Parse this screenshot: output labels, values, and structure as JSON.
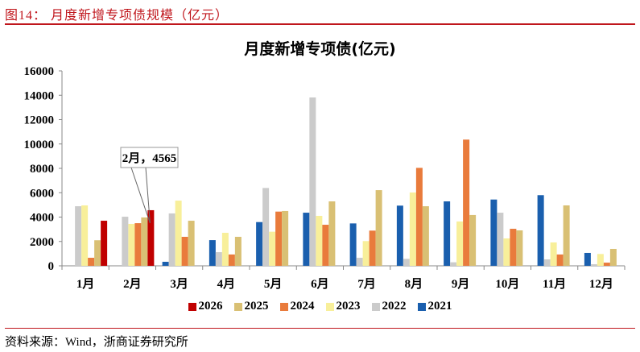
{
  "figure": {
    "title": "图14：  月度新增专项债规模（亿元）",
    "source": "资料来源：Wind，浙商证券研究所"
  },
  "colors": {
    "2021": "#1a5fae",
    "2022": "#cbcbcb",
    "2023": "#f8ef9a",
    "2024": "#e97b3c",
    "2025": "#d9c074",
    "2026": "#c00000",
    "accent": "#c0161c"
  },
  "annotation": {
    "label": "2月，4565",
    "month_index": 1,
    "series": "2026",
    "value": 4565
  },
  "legend": [
    {
      "label": "2026",
      "key": "2026"
    },
    {
      "label": "2025",
      "key": "2025"
    },
    {
      "label": "2024",
      "key": "2024"
    },
    {
      "label": "2023",
      "key": "2023"
    },
    {
      "label": "2022",
      "key": "2022"
    },
    {
      "label": "2021",
      "key": "2021"
    }
  ],
  "chart_data": {
    "type": "bar",
    "title": "月度新增专项债(亿元)",
    "xlabel": "",
    "ylabel": "",
    "ylim": [
      0,
      16000
    ],
    "yticks": [
      0,
      2000,
      4000,
      6000,
      8000,
      10000,
      12000,
      14000,
      16000
    ],
    "grid": false,
    "legend_position": "bottom",
    "categories": [
      "1月",
      "2月",
      "3月",
      "4月",
      "5月",
      "6月",
      "7月",
      "8月",
      "9月",
      "10月",
      "11月",
      "12月"
    ],
    "series": [
      {
        "name": "2021",
        "values": [
          0,
          0,
          330,
          2110,
          3590,
          4360,
          3480,
          4940,
          5290,
          5440,
          5800,
          1060
        ]
      },
      {
        "name": "2022",
        "values": [
          4890,
          4030,
          4300,
          1120,
          6390,
          13820,
          660,
          570,
          290,
          4360,
          530,
          130
        ]
      },
      {
        "name": "2023",
        "values": [
          4960,
          3440,
          5350,
          2710,
          2800,
          4100,
          2030,
          6020,
          3640,
          2250,
          1920,
          970
        ]
      },
      {
        "name": "2024",
        "values": [
          660,
          3500,
          2380,
          930,
          4450,
          3370,
          2890,
          8040,
          10360,
          3040,
          930,
          260
        ]
      },
      {
        "name": "2025",
        "values": [
          2100,
          3970,
          3700,
          2380,
          4500,
          5290,
          6210,
          4890,
          4170,
          2910,
          4960,
          1390
        ]
      },
      {
        "name": "2026",
        "values": [
          3700,
          4565,
          null,
          null,
          null,
          null,
          null,
          null,
          null,
          null,
          null,
          null
        ]
      }
    ]
  }
}
